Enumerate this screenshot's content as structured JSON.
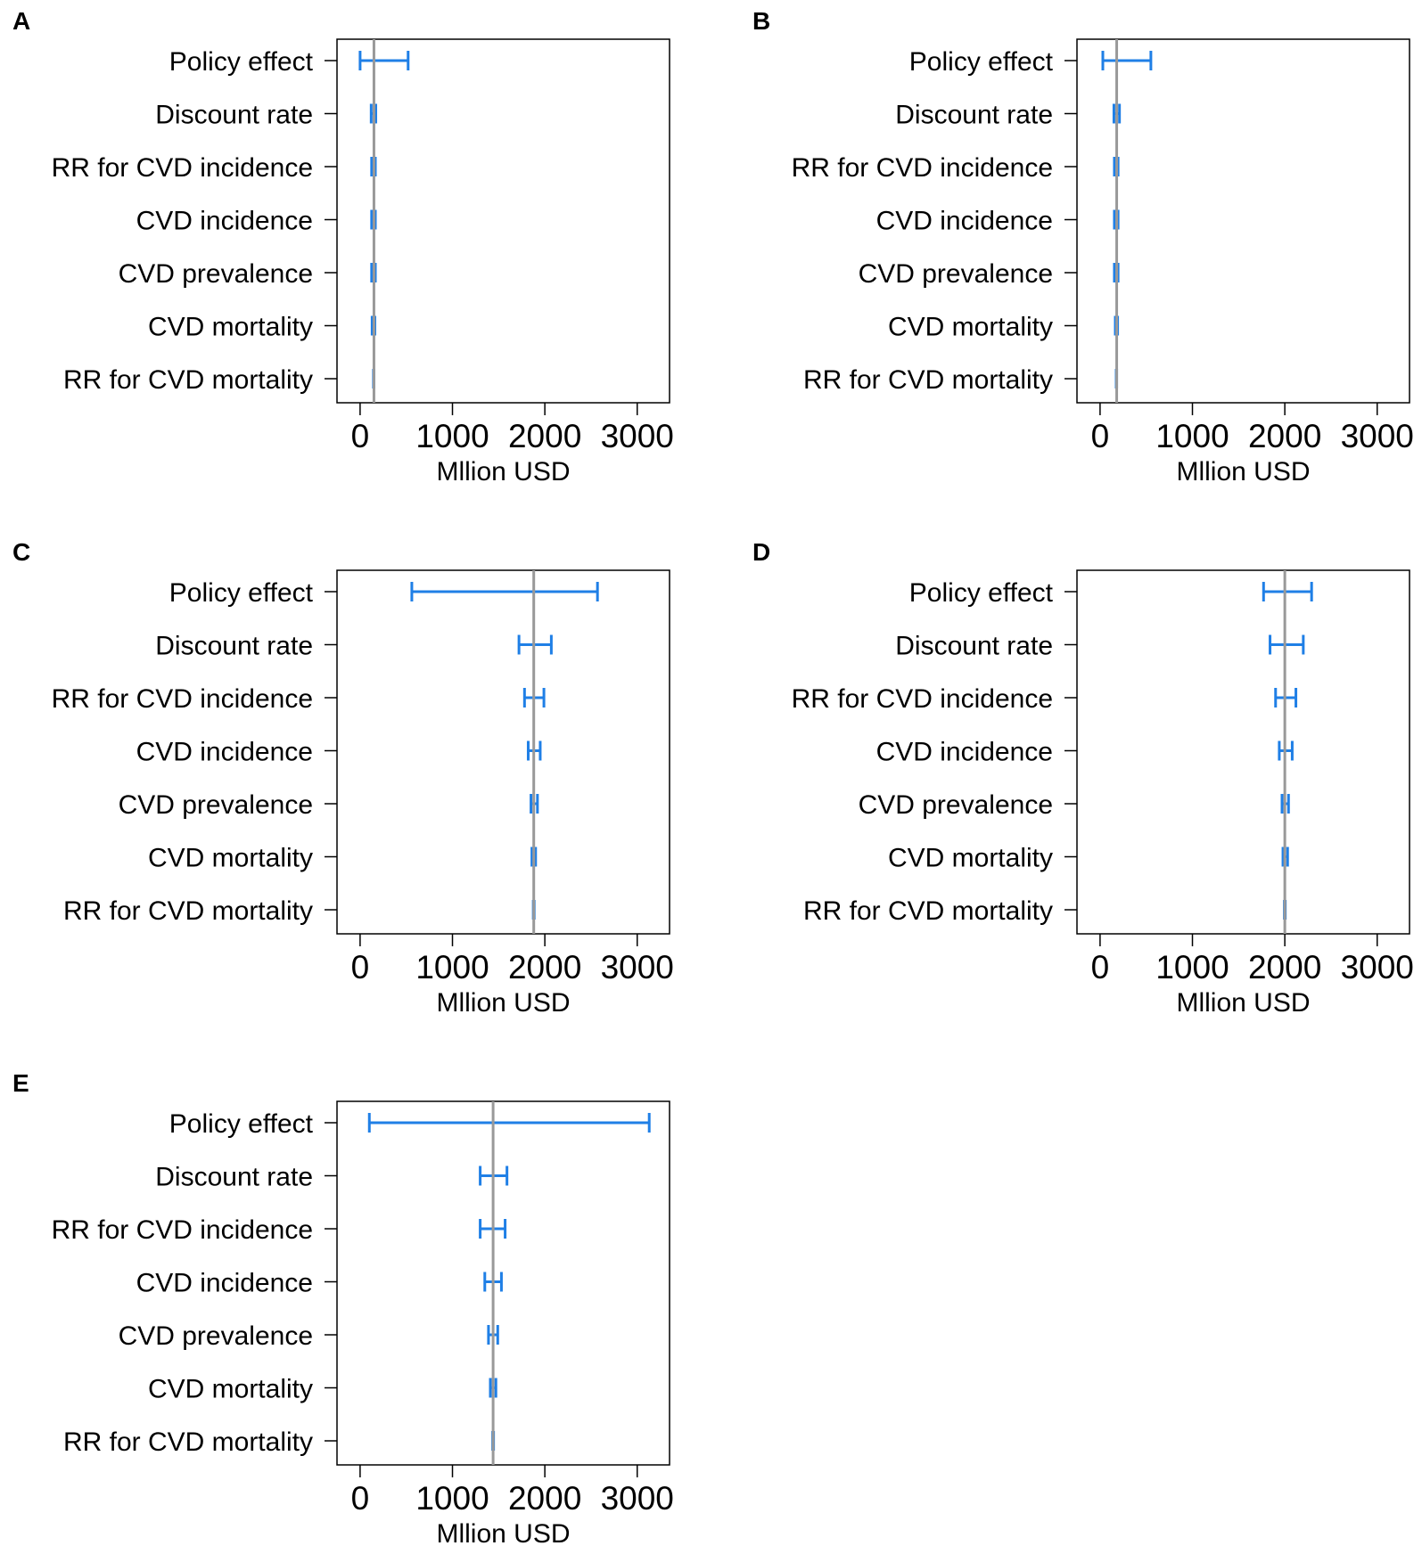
{
  "figure": {
    "series_color": "#1f7fe6",
    "reference_color": "#999999"
  },
  "chart_data": [
    {
      "type": "tornado",
      "panel": "A",
      "xlabel": "Mllion USD",
      "xlim": [
        -250,
        3350
      ],
      "xticks": [
        0,
        1000,
        2000,
        3000
      ],
      "xtick_labels": [
        "0",
        "1000",
        "2000",
        "3000"
      ],
      "base_value": 150,
      "categories": [
        "Policy effect",
        "Discount rate",
        "RR for CVD incidence",
        "CVD incidence",
        "CVD prevalence",
        "CVD mortality",
        "RR for CVD mortality"
      ],
      "low": [
        0,
        120,
        125,
        125,
        125,
        130,
        145
      ],
      "high": [
        520,
        170,
        165,
        165,
        165,
        160,
        150
      ]
    },
    {
      "type": "tornado",
      "panel": "B",
      "xlabel": "Mllion USD",
      "xlim": [
        -250,
        3350
      ],
      "xticks": [
        0,
        1000,
        2000,
        3000
      ],
      "xtick_labels": [
        "0",
        "1000",
        "2000",
        "3000"
      ],
      "base_value": 180,
      "categories": [
        "Policy effect",
        "Discount rate",
        "RR for CVD incidence",
        "CVD incidence",
        "CVD prevalence",
        "CVD mortality",
        "RR for CVD mortality"
      ],
      "low": [
        30,
        150,
        155,
        155,
        155,
        165,
        175
      ],
      "high": [
        550,
        210,
        195,
        195,
        195,
        190,
        180
      ]
    },
    {
      "type": "tornado",
      "panel": "C",
      "xlabel": "Mllion USD",
      "xlim": [
        -250,
        3350
      ],
      "xticks": [
        0,
        1000,
        2000,
        3000
      ],
      "xtick_labels": [
        "0",
        "1000",
        "2000",
        "3000"
      ],
      "base_value": 1880,
      "categories": [
        "Policy effect",
        "Discount rate",
        "RR for CVD incidence",
        "CVD incidence",
        "CVD prevalence",
        "CVD mortality",
        "RR for CVD mortality"
      ],
      "low": [
        560,
        1720,
        1780,
        1820,
        1850,
        1860,
        1875
      ],
      "high": [
        2570,
        2070,
        1990,
        1950,
        1920,
        1900,
        1885
      ]
    },
    {
      "type": "tornado",
      "panel": "D",
      "xlabel": "Mllion USD",
      "xlim": [
        -250,
        3350
      ],
      "xticks": [
        0,
        1000,
        2000,
        3000
      ],
      "xtick_labels": [
        "0",
        "1000",
        "2000",
        "3000"
      ],
      "base_value": 2000,
      "categories": [
        "Policy effect",
        "Discount rate",
        "RR for CVD incidence",
        "CVD incidence",
        "CVD prevalence",
        "CVD mortality",
        "RR for CVD mortality"
      ],
      "low": [
        1770,
        1840,
        1900,
        1940,
        1970,
        1980,
        1995
      ],
      "high": [
        2290,
        2200,
        2120,
        2080,
        2040,
        2030,
        2005
      ]
    },
    {
      "type": "tornado",
      "panel": "E",
      "xlabel": "Mllion USD",
      "xlim": [
        -250,
        3350
      ],
      "xticks": [
        0,
        1000,
        2000,
        3000
      ],
      "xtick_labels": [
        "0",
        "1000",
        "2000",
        "3000"
      ],
      "base_value": 1440,
      "categories": [
        "Policy effect",
        "Discount rate",
        "RR for CVD incidence",
        "CVD incidence",
        "CVD prevalence",
        "CVD mortality",
        "RR for CVD mortality"
      ],
      "low": [
        100,
        1300,
        1300,
        1350,
        1390,
        1410,
        1435
      ],
      "high": [
        3130,
        1590,
        1570,
        1530,
        1490,
        1470,
        1445
      ]
    }
  ]
}
